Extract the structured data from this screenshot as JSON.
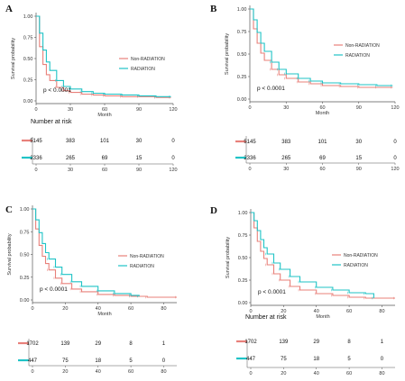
{
  "colors": {
    "non_radiation": "#E8807A",
    "radiation": "#1FC3C6",
    "axis": "#555555"
  },
  "chart_data": [
    {
      "panel": "A",
      "type": "line",
      "ylabel": "Survival probability",
      "xlabel": "Month",
      "x_ticks": [
        "0",
        "30",
        "60",
        "90",
        "120"
      ],
      "y_ticks": [
        "0.00",
        "0.25",
        "0.50",
        "0.75",
        "1.00"
      ],
      "xlim": [
        0,
        120
      ],
      "ylim": [
        0,
        1
      ],
      "pvalue": "p < 0.0001",
      "legend": [
        "Non-RADIATION",
        "RADIATION"
      ],
      "legend_position": "right",
      "series": [
        {
          "name": "Non-RADIATION",
          "x": [
            0,
            3,
            6,
            9,
            12,
            18,
            24,
            30,
            40,
            50,
            60,
            75,
            90,
            105,
            118
          ],
          "y": [
            1.0,
            0.64,
            0.43,
            0.31,
            0.24,
            0.16,
            0.12,
            0.1,
            0.08,
            0.07,
            0.06,
            0.05,
            0.05,
            0.04,
            0.04
          ]
        },
        {
          "name": "RADIATION",
          "x": [
            0,
            3,
            6,
            9,
            12,
            18,
            24,
            30,
            40,
            50,
            60,
            75,
            90,
            105,
            118
          ],
          "y": [
            1.0,
            0.8,
            0.6,
            0.46,
            0.36,
            0.24,
            0.17,
            0.14,
            0.11,
            0.09,
            0.08,
            0.07,
            0.06,
            0.05,
            0.05
          ]
        }
      ],
      "risk_table": {
        "title": "Number at risk",
        "rows": [
          [
            "5145",
            "383",
            "101",
            "30",
            "0"
          ],
          [
            "2336",
            "265",
            "69",
            "15",
            "0"
          ]
        ],
        "x_ticks": [
          "0",
          "30",
          "60",
          "90",
          "120"
        ]
      }
    },
    {
      "panel": "B",
      "type": "line",
      "ylabel": "Survival probability",
      "xlabel": "Month",
      "x_ticks": [
        "0",
        "30",
        "60",
        "90",
        "120"
      ],
      "y_ticks": [
        "0.00",
        "0.25",
        "0.50",
        "0.75",
        "1.00"
      ],
      "xlim": [
        0,
        120
      ],
      "ylim": [
        0,
        1
      ],
      "pvalue": "p < 0.0001",
      "legend": [
        "Non-RADIATION",
        "RADIATION"
      ],
      "legend_position": "top-right",
      "series": [
        {
          "name": "Non-RADIATION",
          "x": [
            0,
            3,
            6,
            9,
            12,
            18,
            24,
            30,
            40,
            50,
            60,
            75,
            90,
            105,
            118
          ],
          "y": [
            1.0,
            0.78,
            0.62,
            0.51,
            0.43,
            0.33,
            0.27,
            0.23,
            0.19,
            0.17,
            0.15,
            0.14,
            0.13,
            0.13,
            0.13
          ]
        },
        {
          "name": "RADIATION",
          "x": [
            0,
            3,
            6,
            9,
            12,
            18,
            24,
            30,
            40,
            50,
            60,
            75,
            90,
            105,
            118
          ],
          "y": [
            1.0,
            0.88,
            0.74,
            0.62,
            0.53,
            0.41,
            0.33,
            0.28,
            0.23,
            0.2,
            0.18,
            0.17,
            0.16,
            0.15,
            0.15
          ]
        }
      ],
      "risk_table": {
        "title": "",
        "rows": [
          [
            "5145",
            "383",
            "101",
            "30",
            "0"
          ],
          [
            "2336",
            "265",
            "69",
            "15",
            "0"
          ]
        ],
        "x_ticks": [
          "0",
          "30",
          "60",
          "90",
          "120"
        ]
      }
    },
    {
      "panel": "C",
      "type": "line",
      "ylabel": "Survival probability",
      "xlabel": "Month",
      "x_ticks": [
        "0",
        "20",
        "40",
        "60",
        "80"
      ],
      "y_ticks": [
        "0.00",
        "0.25",
        "0.50",
        "0.75",
        "1.00"
      ],
      "xlim": [
        0,
        88
      ],
      "ylim": [
        0,
        1
      ],
      "pvalue": "p < 0.0001",
      "legend": [
        "Non-RADIATION",
        "RADIATION"
      ],
      "legend_position": "right",
      "series": [
        {
          "name": "Non-RADIATION",
          "x": [
            0,
            2,
            4,
            6,
            8,
            10,
            14,
            18,
            24,
            30,
            40,
            50,
            60,
            70,
            88
          ],
          "y": [
            1.0,
            0.78,
            0.6,
            0.48,
            0.4,
            0.33,
            0.24,
            0.18,
            0.12,
            0.09,
            0.06,
            0.05,
            0.04,
            0.03,
            0.03
          ]
        },
        {
          "name": "RADIATION",
          "x": [
            0,
            2,
            4,
            6,
            8,
            10,
            14,
            18,
            24,
            30,
            40,
            50,
            60,
            65
          ],
          "y": [
            1.0,
            0.88,
            0.74,
            0.62,
            0.52,
            0.45,
            0.36,
            0.28,
            0.2,
            0.15,
            0.1,
            0.07,
            0.05,
            0.04
          ]
        }
      ],
      "risk_table": {
        "title": "",
        "rows": [
          [
            "1702",
            "139",
            "29",
            "8",
            "1"
          ],
          [
            "447",
            "75",
            "18",
            "5",
            "0"
          ]
        ],
        "x_ticks": [
          "0",
          "20",
          "40",
          "60",
          "80"
        ]
      }
    },
    {
      "panel": "D",
      "type": "line",
      "ylabel": "Survival probability",
      "xlabel": "Month",
      "x_ticks": [
        "0",
        "20",
        "40",
        "60",
        "80"
      ],
      "y_ticks": [
        "0.00",
        "0.25",
        "0.50",
        "0.75",
        "1.00"
      ],
      "xlim": [
        0,
        88
      ],
      "ylim": [
        0,
        1
      ],
      "pvalue": "p < 0.0001",
      "legend": [
        "Non-RADIATION",
        "RADIATION"
      ],
      "legend_position": "right",
      "series": [
        {
          "name": "Non-RADIATION",
          "x": [
            0,
            2,
            4,
            6,
            8,
            10,
            14,
            18,
            24,
            30,
            40,
            50,
            60,
            70,
            88
          ],
          "y": [
            1.0,
            0.83,
            0.68,
            0.57,
            0.49,
            0.42,
            0.32,
            0.25,
            0.18,
            0.14,
            0.1,
            0.08,
            0.06,
            0.05,
            0.05
          ]
        },
        {
          "name": "RADIATION",
          "x": [
            0,
            2,
            4,
            6,
            8,
            10,
            14,
            18,
            24,
            30,
            40,
            50,
            60,
            70,
            75
          ],
          "y": [
            1.0,
            0.91,
            0.8,
            0.7,
            0.61,
            0.54,
            0.44,
            0.37,
            0.29,
            0.23,
            0.17,
            0.14,
            0.11,
            0.1,
            0.05
          ]
        }
      ],
      "risk_table": {
        "title": "Number at risk",
        "rows": [
          [
            "1702",
            "139",
            "29",
            "8",
            "1"
          ],
          [
            "447",
            "75",
            "18",
            "5",
            "0"
          ]
        ],
        "x_ticks": [
          "0",
          "20",
          "40",
          "60",
          "80"
        ]
      }
    }
  ]
}
